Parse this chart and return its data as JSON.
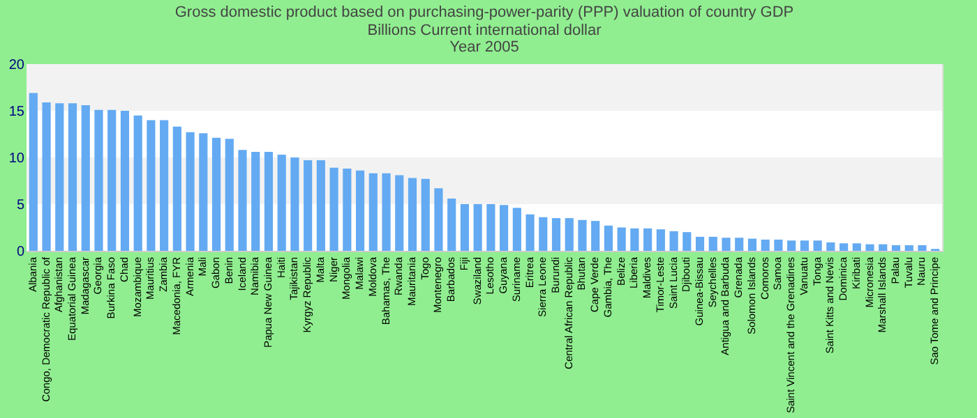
{
  "chart_data": {
    "type": "bar",
    "title": [
      "Gross domestic product based on purchasing-power-parity (PPP) valuation of country GDP",
      "Billions Current international dollar"
    ],
    "subtitle": "Year 2005",
    "categories": [
      "Albania",
      "Congo, Democratic Republic of",
      "Afghanistan",
      "Equatorial Guinea",
      "Madagascar",
      "Georgia",
      "Burkina Faso",
      "Chad",
      "Mozambique",
      "Mauritius",
      "Zambia",
      "Macedonia, FYR",
      "Armenia",
      "Mali",
      "Gabon",
      "Benin",
      "Iceland",
      "Namibia",
      "Papua New Guinea",
      "Haiti",
      "Tajikistan",
      "Kyrgyz Republic",
      "Malta",
      "Niger",
      "Mongolia",
      "Malawi",
      "Moldova",
      "Bahamas, The",
      "Rwanda",
      "Mauritania",
      "Togo",
      "Montenegro",
      "Barbados",
      "Fiji",
      "Swaziland",
      "Lesotho",
      "Guyana",
      "Suriname",
      "Eritrea",
      "Sierra Leone",
      "Burundi",
      "Central African Republic",
      "Bhutan",
      "Cape Verde",
      "Gambia, The",
      "Belize",
      "Liberia",
      "Maldives",
      "Timor-Leste",
      "Saint Lucia",
      "Djibouti",
      "Guinea-Bissau",
      "Seychelles",
      "Antigua and Barbuda",
      "Grenada",
      "Solomon Islands",
      "Comoros",
      "Samoa",
      "Saint Vincent and the Grenadines",
      "Vanuatu",
      "Tonga",
      "Saint Kitts and Nevis",
      "Dominica",
      "Kiribati",
      "Micronesia",
      "Marshall Islands",
      "Palau",
      "Tuvalu",
      "Nauru",
      "Sao Tome and Principe"
    ],
    "values": [
      16.9,
      15.9,
      15.8,
      15.8,
      15.6,
      15.1,
      15.1,
      15.0,
      14.5,
      14.0,
      14.0,
      13.3,
      12.7,
      12.6,
      12.1,
      12.0,
      10.8,
      10.6,
      10.6,
      10.3,
      10.0,
      9.7,
      9.7,
      8.9,
      8.8,
      8.6,
      8.3,
      8.3,
      8.1,
      7.8,
      7.7,
      6.7,
      5.6,
      5.0,
      5.0,
      5.0,
      4.9,
      4.6,
      3.9,
      3.6,
      3.5,
      3.5,
      3.3,
      3.2,
      2.7,
      2.5,
      2.4,
      2.4,
      2.3,
      2.1,
      2.0,
      1.5,
      1.5,
      1.4,
      1.4,
      1.3,
      1.2,
      1.2,
      1.1,
      1.1,
      1.1,
      0.9,
      0.8,
      0.8,
      0.7,
      0.7,
      0.6,
      0.6,
      0.6,
      0.2
    ],
    "color": "#63aaf2",
    "ylim": [
      0,
      20
    ],
    "yticks": [
      0,
      5,
      10,
      15,
      20
    ],
    "grid": "y"
  }
}
